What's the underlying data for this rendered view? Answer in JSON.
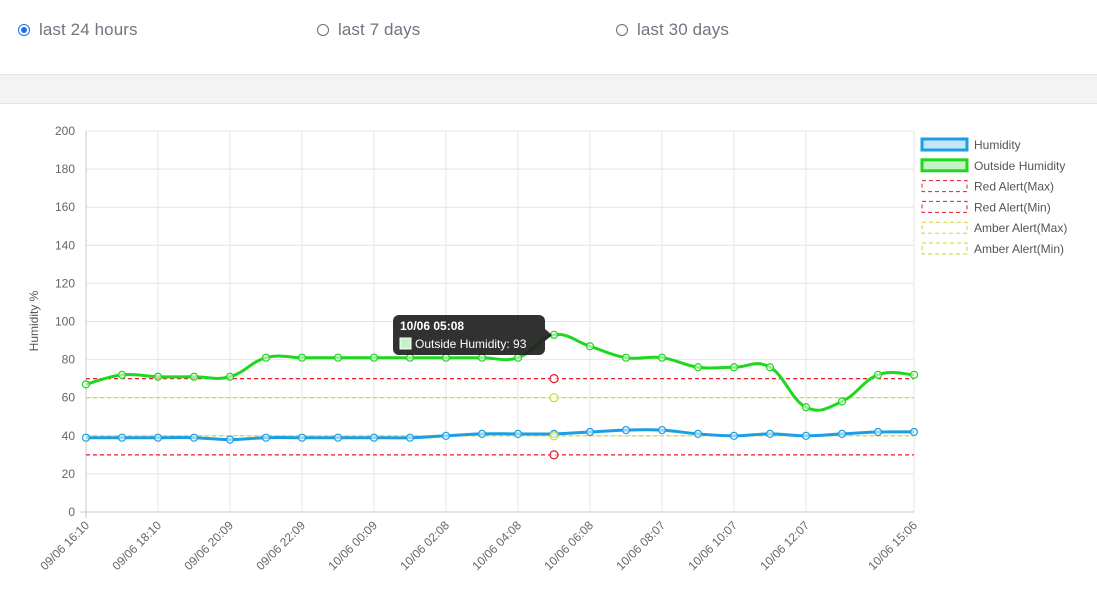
{
  "time_range": {
    "options": [
      {
        "label": "last 24 hours",
        "checked": true
      },
      {
        "label": "last 7 days",
        "checked": false
      },
      {
        "label": "last 30 days",
        "checked": false
      }
    ]
  },
  "colors": {
    "humidity": "#1b9ee3",
    "outside_humidity": "#1ed71e",
    "red_alert": "#e8192c",
    "amber_alert": "#cdd62a",
    "tooltip_bg": "#1f1f1f"
  },
  "chart_data": {
    "type": "line",
    "title": "",
    "xlabel": "",
    "ylabel": "Humidity %",
    "ylim": [
      0,
      200
    ],
    "y_ticks": [
      0,
      20,
      40,
      60,
      80,
      100,
      120,
      140,
      160,
      180,
      200
    ],
    "grid": true,
    "legend_position": "right",
    "x_tick_labels": [
      "09/06 16:10",
      "09/06 18:10",
      "09/06 20:09",
      "09/06 22:09",
      "10/06 00:09",
      "10/06 02:08",
      "10/06 04:08",
      "10/06 06:08",
      "10/06 08:07",
      "10/06 10:07",
      "10/06 12:07",
      "10/06 15:06"
    ],
    "series": [
      {
        "name": "Humidity",
        "style": "line-fill",
        "values": [
          39,
          39,
          39,
          39,
          38,
          39,
          39,
          39,
          39,
          39,
          40,
          41,
          41,
          41,
          42,
          43,
          43,
          41,
          40,
          41,
          40,
          41,
          42,
          42
        ]
      },
      {
        "name": "Outside Humidity",
        "style": "line-fill",
        "values": [
          67,
          72,
          71,
          71,
          71,
          81,
          81,
          81,
          81,
          81,
          81,
          81,
          81,
          93,
          87,
          81,
          81,
          76,
          76,
          76,
          55,
          58,
          72,
          72
        ]
      },
      {
        "name": "Red Alert(Max)",
        "style": "dashed",
        "values": [
          70,
          70,
          70,
          70,
          70,
          70,
          70,
          70,
          70,
          70,
          70,
          70,
          70,
          70,
          70,
          70,
          70,
          70,
          70,
          70,
          70,
          70,
          70,
          70
        ]
      },
      {
        "name": "Red Alert(Min)",
        "style": "dashed",
        "values": [
          30,
          30,
          30,
          30,
          30,
          30,
          30,
          30,
          30,
          30,
          30,
          30,
          30,
          30,
          30,
          30,
          30,
          30,
          30,
          30,
          30,
          30,
          30,
          30
        ]
      },
      {
        "name": "Amber Alert(Max)",
        "style": "dashed",
        "values": [
          60,
          60,
          60,
          60,
          60,
          60,
          60,
          60,
          60,
          60,
          60,
          60,
          60,
          60,
          60,
          60,
          60,
          60,
          60,
          60,
          60,
          60,
          60,
          60
        ]
      },
      {
        "name": "Amber Alert(Min)",
        "style": "dashed",
        "values": [
          40,
          40,
          40,
          40,
          40,
          40,
          40,
          40,
          40,
          40,
          40,
          40,
          40,
          40,
          40,
          40,
          40,
          40,
          40,
          40,
          40,
          40,
          40,
          40
        ]
      }
    ],
    "tooltip": {
      "title": "10/06  05:08",
      "series": "Outside Humidity",
      "value": 93
    }
  }
}
